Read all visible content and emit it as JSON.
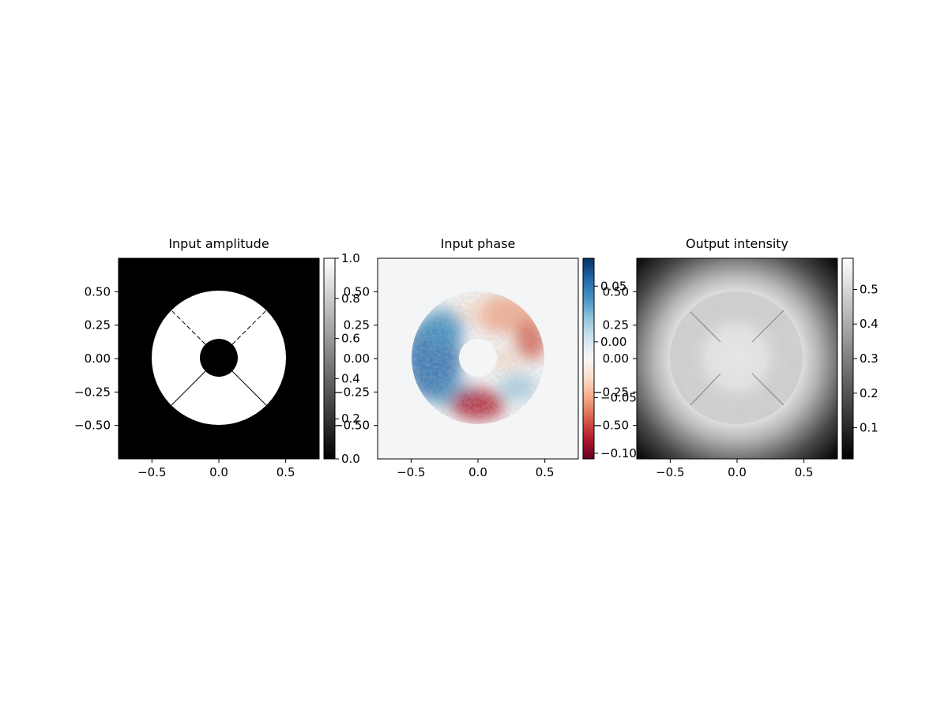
{
  "chart_data": [
    {
      "type": "heatmap",
      "title": "Input amplitude",
      "colormap": "gray",
      "xlim": [
        -0.75,
        0.75
      ],
      "ylim": [
        -0.75,
        0.75
      ],
      "x_ticks": [
        -0.5,
        0.0,
        0.5
      ],
      "x_tick_labels": [
        "−0.5",
        "0.0",
        "0.5"
      ],
      "y_ticks": [
        0.5,
        0.25,
        0.0,
        -0.25,
        -0.5
      ],
      "y_tick_labels": [
        "0.50",
        "0.25",
        "0.00",
        "−0.25",
        "−0.50"
      ],
      "colorbar": {
        "range": [
          0.0,
          1.0
        ],
        "ticks": [
          0.0,
          0.2,
          0.4,
          0.6,
          0.8,
          1.0
        ],
        "tick_labels": [
          "0.0",
          "0.2",
          "0.4",
          "0.6",
          "0.8",
          "1.0"
        ]
      },
      "pupil": {
        "outer_radius": 0.5,
        "inner_radius": 0.14,
        "spider_angles_deg": [
          45,
          135,
          225,
          315
        ]
      },
      "values": {
        "inside_pupil": 1.0,
        "outside_pupil": 0.0
      },
      "grid": false
    },
    {
      "type": "heatmap",
      "title": "Input phase",
      "colormap": "RdBu",
      "xlim": [
        -0.75,
        0.75
      ],
      "ylim": [
        -0.75,
        0.75
      ],
      "x_ticks": [
        -0.5,
        0.0,
        0.5
      ],
      "x_tick_labels": [
        "−0.5",
        "0.0",
        "0.5"
      ],
      "y_ticks": [
        0.5,
        0.25,
        0.0,
        -0.25,
        -0.5
      ],
      "y_tick_labels": [
        "0.50",
        "0.25",
        "0.00",
        "−0.25",
        "−0.50"
      ],
      "colorbar": {
        "range": [
          -0.105,
          0.075
        ],
        "ticks": [
          0.05,
          0.0,
          -0.05,
          -0.1
        ],
        "tick_labels": [
          "0.05",
          "0.00",
          "−0.05",
          "−0.10"
        ]
      },
      "pupil": {
        "outer_radius": 0.5,
        "inner_radius": 0.14
      },
      "grid": false
    },
    {
      "type": "heatmap",
      "title": "Output intensity",
      "colormap": "gray",
      "xlim": [
        -0.75,
        0.75
      ],
      "ylim": [
        -0.75,
        0.75
      ],
      "x_ticks": [
        -0.5,
        0.0,
        0.5
      ],
      "x_tick_labels": [
        "−0.5",
        "0.0",
        "0.5"
      ],
      "y_ticks": [
        0.5,
        0.25,
        0.0,
        -0.25,
        -0.5
      ],
      "y_tick_labels": [
        "0.50",
        "0.25",
        "0.00",
        "−0.25",
        "−0.50"
      ],
      "colorbar": {
        "range": [
          0.01,
          0.59
        ],
        "ticks": [
          0.1,
          0.2,
          0.3,
          0.4,
          0.5
        ],
        "tick_labels": [
          "0.1",
          "0.2",
          "0.3",
          "0.4",
          "0.5"
        ]
      },
      "pupil": {
        "outer_radius": 0.5,
        "inner_radius": 0.14
      },
      "values": {
        "pupil_mean": 0.42,
        "center": 0.46,
        "halo_edge": 0.36,
        "corner": 0.0
      },
      "grid": false
    }
  ]
}
